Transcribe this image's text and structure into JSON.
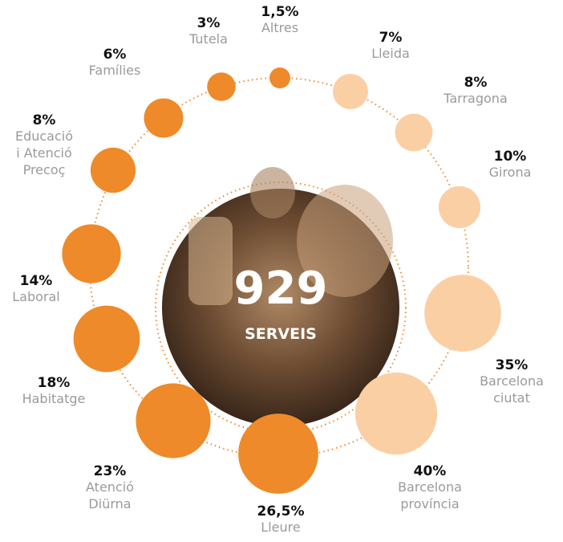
{
  "chart_data": {
    "type": "bubble-ring",
    "center_value": 929,
    "center_label": "SERVEIS",
    "series": [
      {
        "color": "#ee8a2a",
        "categories": [
          "Altres",
          "Tutela",
          "Famílies",
          "Educació\ni Atenció\nPrecoç",
          "Laboral",
          "Habitatge",
          "Atenció\nDiürna",
          "Lleure"
        ],
        "values": [
          1.5,
          3,
          6,
          8,
          14,
          18,
          23,
          26.5
        ],
        "value_labels": [
          "1,5%",
          "3%",
          "6%",
          "8%",
          "14%",
          "18%",
          "23%",
          "26,5%"
        ]
      },
      {
        "color": "#fbcfa4",
        "categories": [
          "Lleida",
          "Tarragona",
          "Girona",
          "Barcelona\nciutat",
          "Barcelona\nprovíncia"
        ],
        "values": [
          7,
          8,
          10,
          35,
          40
        ],
        "value_labels": [
          "7%",
          "8%",
          "10%",
          "35%",
          "40%"
        ]
      }
    ]
  }
}
